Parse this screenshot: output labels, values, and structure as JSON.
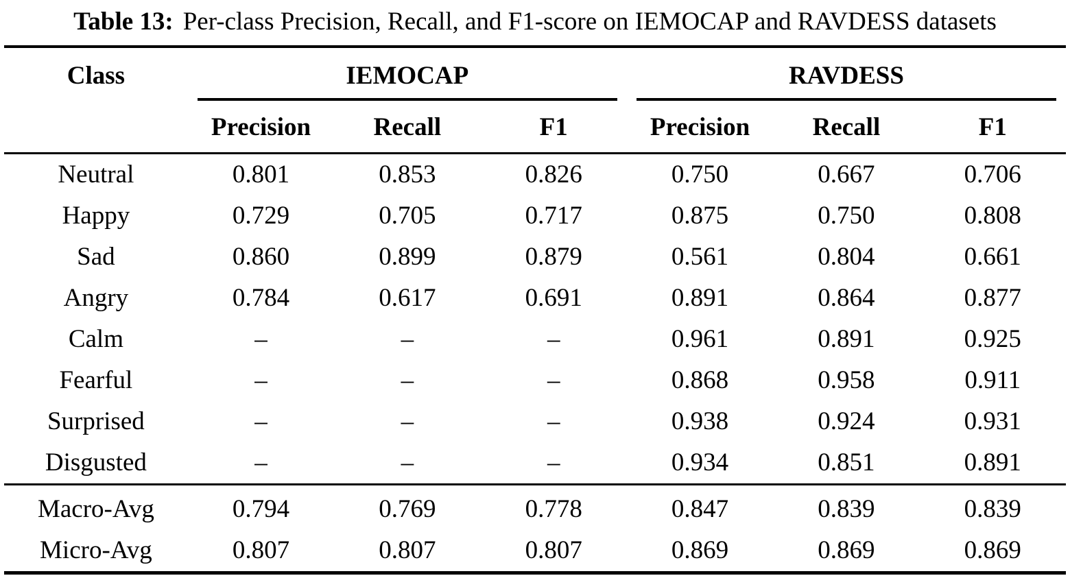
{
  "caption": {
    "label": "Table 13:",
    "text": "Per-class Precision, Recall, and F1-score on IEMOCAP and RAVDESS datasets"
  },
  "table": {
    "class_header": "Class",
    "groups": [
      {
        "label": "IEMOCAP",
        "columns": [
          "Precision",
          "Recall",
          "F1"
        ]
      },
      {
        "label": "RAVDESS",
        "columns": [
          "Precision",
          "Recall",
          "F1"
        ]
      }
    ],
    "rows": [
      {
        "class": "Neutral",
        "values": [
          "0.801",
          "0.853",
          "0.826",
          "0.750",
          "0.667",
          "0.706"
        ]
      },
      {
        "class": "Happy",
        "values": [
          "0.729",
          "0.705",
          "0.717",
          "0.875",
          "0.750",
          "0.808"
        ]
      },
      {
        "class": "Sad",
        "values": [
          "0.860",
          "0.899",
          "0.879",
          "0.561",
          "0.804",
          "0.661"
        ]
      },
      {
        "class": "Angry",
        "values": [
          "0.784",
          "0.617",
          "0.691",
          "0.891",
          "0.864",
          "0.877"
        ]
      },
      {
        "class": "Calm",
        "values": [
          "–",
          "–",
          "–",
          "0.961",
          "0.891",
          "0.925"
        ]
      },
      {
        "class": "Fearful",
        "values": [
          "–",
          "–",
          "–",
          "0.868",
          "0.958",
          "0.911"
        ]
      },
      {
        "class": "Surprised",
        "values": [
          "–",
          "–",
          "–",
          "0.938",
          "0.924",
          "0.931"
        ]
      },
      {
        "class": "Disgusted",
        "values": [
          "–",
          "–",
          "–",
          "0.934",
          "0.851",
          "0.891"
        ]
      }
    ],
    "summary_rows": [
      {
        "class": "Macro-Avg",
        "values": [
          "0.794",
          "0.769",
          "0.778",
          "0.847",
          "0.839",
          "0.839"
        ]
      },
      {
        "class": "Micro-Avg",
        "values": [
          "0.807",
          "0.807",
          "0.807",
          "0.869",
          "0.869",
          "0.869"
        ]
      }
    ]
  },
  "colors": {
    "text": "#000000",
    "background": "#ffffff",
    "rule": "#000000"
  }
}
